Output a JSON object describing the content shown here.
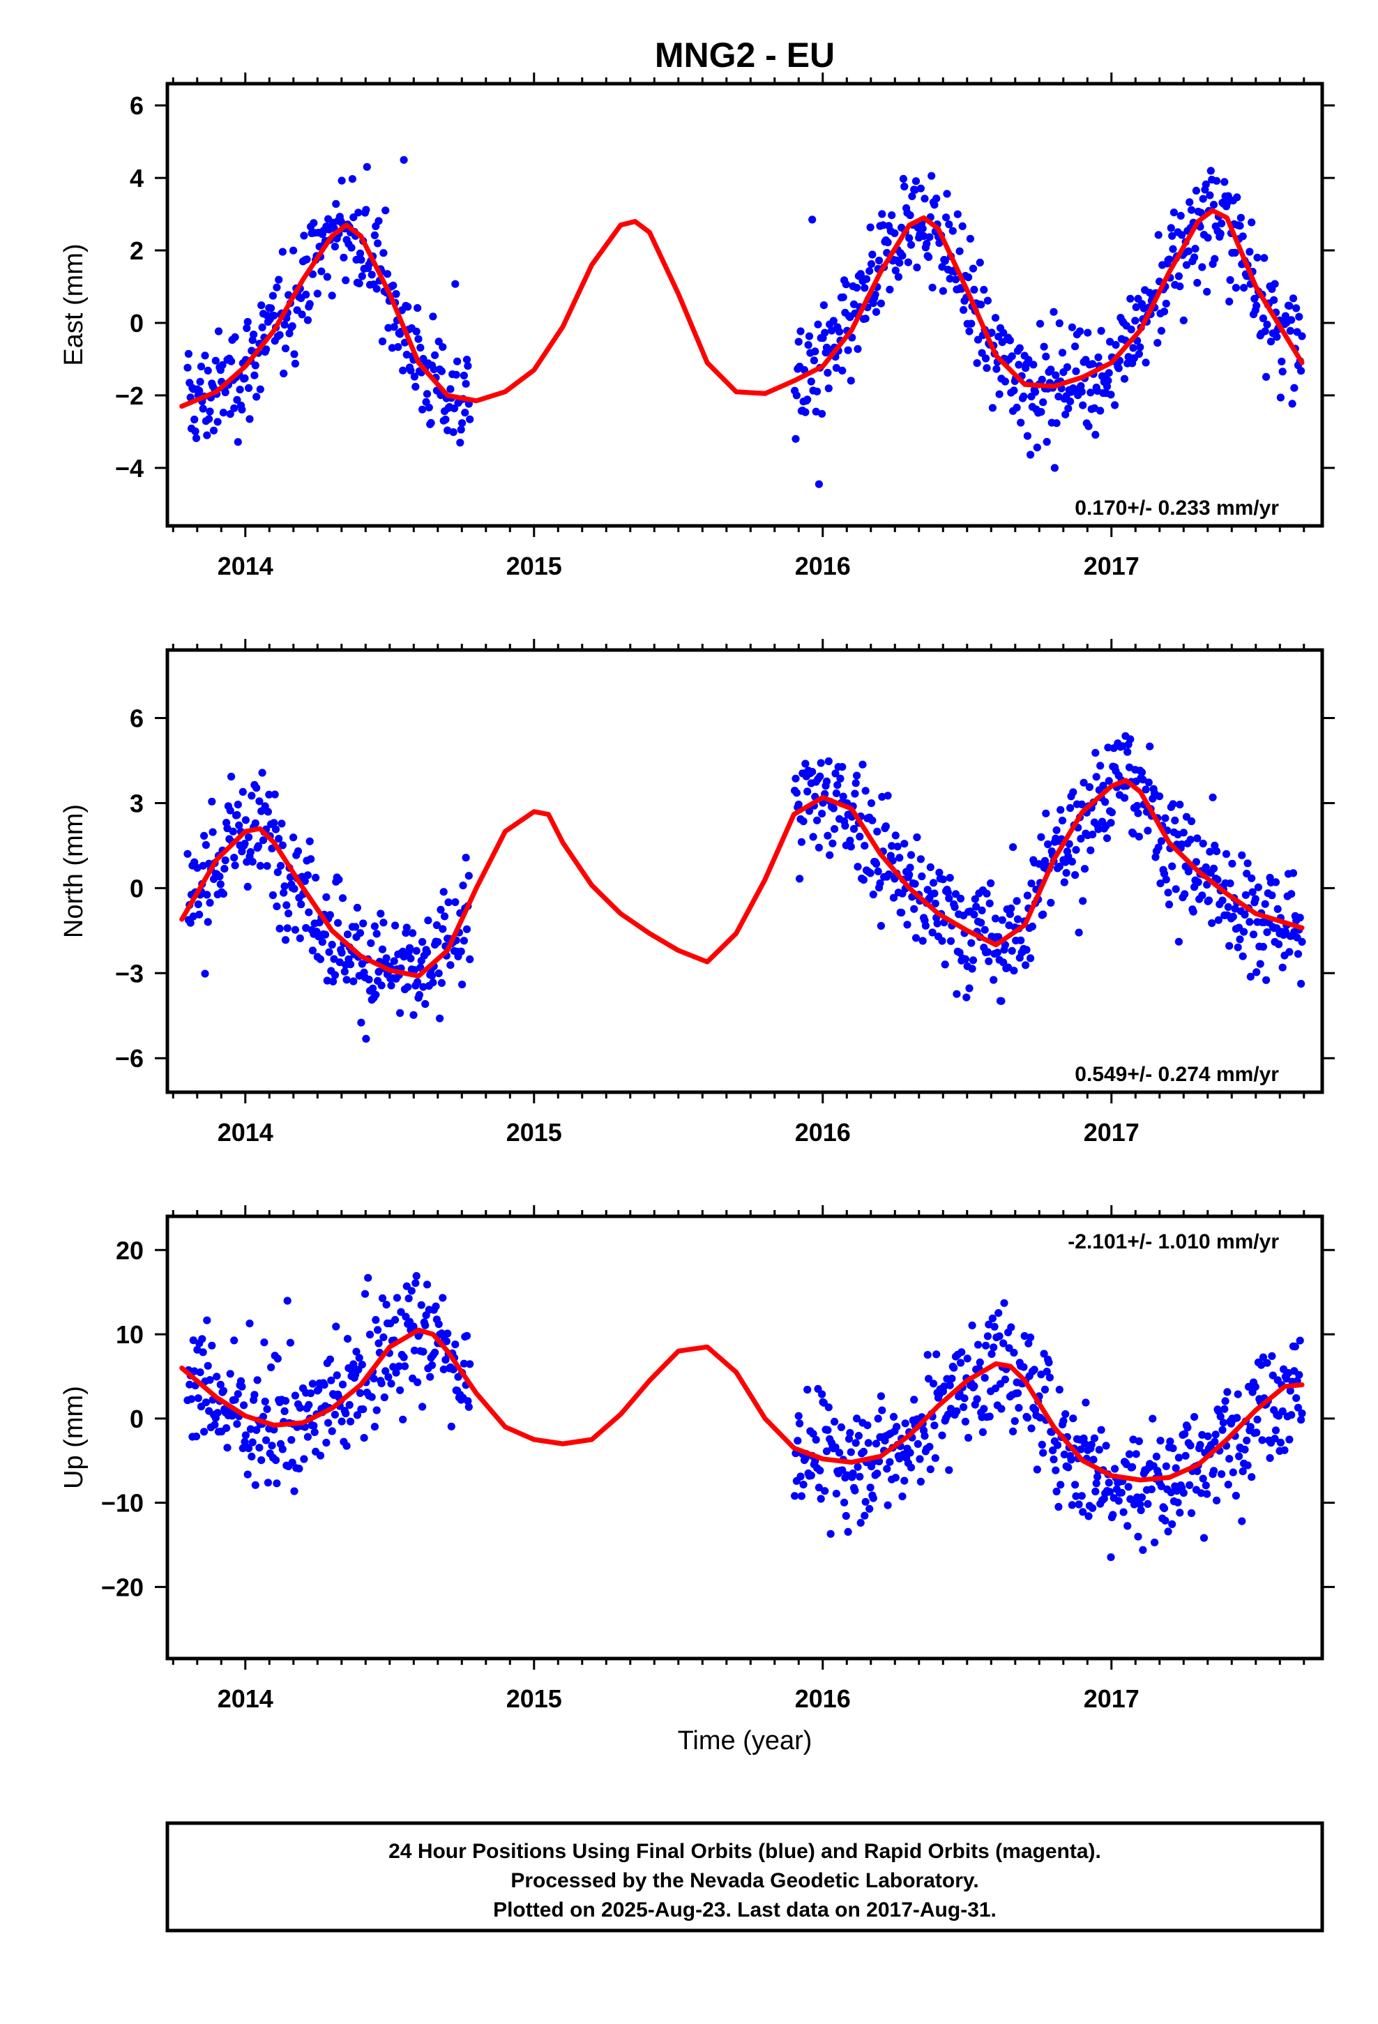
{
  "colors": {
    "points": "#0000ff",
    "fit": "#ff0000",
    "frame": "#000000"
  },
  "chart_data": [
    {
      "type": "scatter",
      "title": "MNG2 - EU",
      "ylabel": "East (mm)",
      "xlabel": "",
      "xlim": [
        2013.73,
        2017.73
      ],
      "ylim": [
        -5.6,
        6.6
      ],
      "yticks": [
        -4,
        -2,
        0,
        2,
        4,
        6
      ],
      "ytick_labels": [
        "−4",
        "−2",
        "0",
        "2",
        "4",
        "6"
      ],
      "xticks": [
        2014,
        2015,
        2016,
        2017
      ],
      "xtick_labels": [
        "2014",
        "2015",
        "2016",
        "2017"
      ],
      "rate": "0.170+/- 0.233 mm/yr",
      "rate_position": "bottom-right",
      "grid": false,
      "series": [
        {
          "role": "data",
          "x_range": [
            2013.8,
            2017.66
          ],
          "gaps": [
            [
              2014.78,
              2015.9
            ]
          ],
          "samples": 1150
        },
        {
          "role": "fit",
          "x": [
            2013.78,
            2013.9,
            2014.0,
            2014.1,
            2014.2,
            2014.3,
            2014.35,
            2014.4,
            2014.5,
            2014.6,
            2014.7,
            2014.8,
            2014.9,
            2015.0,
            2015.1,
            2015.2,
            2015.3,
            2015.35,
            2015.4,
            2015.5,
            2015.6,
            2015.7,
            2015.8,
            2015.9,
            2016.0,
            2016.1,
            2016.2,
            2016.3,
            2016.35,
            2016.4,
            2016.5,
            2016.6,
            2016.7,
            2016.8,
            2016.9,
            2017.0,
            2017.1,
            2017.2,
            2017.3,
            2017.35,
            2017.4,
            2017.5,
            2017.66
          ],
          "y": [
            -2.3,
            -1.9,
            -1.2,
            -0.2,
            1.2,
            2.4,
            2.7,
            2.4,
            0.8,
            -1.1,
            -2.0,
            -2.15,
            -1.9,
            -1.3,
            -0.1,
            1.6,
            2.7,
            2.8,
            2.5,
            0.8,
            -1.1,
            -1.9,
            -1.95,
            -1.6,
            -1.2,
            -0.2,
            1.4,
            2.7,
            2.9,
            2.6,
            0.9,
            -0.9,
            -1.7,
            -1.75,
            -1.5,
            -1.1,
            -0.2,
            1.4,
            2.8,
            3.1,
            2.9,
            1.0,
            -1.1
          ]
        }
      ]
    },
    {
      "type": "scatter",
      "title": "",
      "ylabel": "North (mm)",
      "xlabel": "",
      "xlim": [
        2013.73,
        2017.73
      ],
      "ylim": [
        -7.2,
        8.4
      ],
      "yticks": [
        -6,
        -3,
        0,
        3,
        6
      ],
      "ytick_labels": [
        "−6",
        "−3",
        "0",
        "3",
        "6"
      ],
      "xticks": [
        2014,
        2015,
        2016,
        2017
      ],
      "xtick_labels": [
        "2014",
        "2015",
        "2016",
        "2017"
      ],
      "rate": "0.549+/- 0.274 mm/yr",
      "rate_position": "bottom-right",
      "grid": false,
      "series": [
        {
          "role": "data",
          "x_range": [
            2013.8,
            2017.66
          ],
          "gaps": [
            [
              2014.78,
              2015.9
            ]
          ],
          "samples": 1150
        },
        {
          "role": "fit",
          "x": [
            2013.78,
            2013.9,
            2014.0,
            2014.05,
            2014.1,
            2014.2,
            2014.3,
            2014.4,
            2014.5,
            2014.6,
            2014.7,
            2014.8,
            2014.9,
            2015.0,
            2015.05,
            2015.1,
            2015.2,
            2015.3,
            2015.4,
            2015.5,
            2015.6,
            2015.7,
            2015.8,
            2015.9,
            2016.0,
            2016.1,
            2016.2,
            2016.3,
            2016.4,
            2016.5,
            2016.6,
            2016.7,
            2016.8,
            2016.9,
            2017.0,
            2017.05,
            2017.1,
            2017.2,
            2017.3,
            2017.4,
            2017.5,
            2017.66
          ],
          "y": [
            -1.1,
            1.0,
            2.0,
            2.1,
            1.6,
            0.0,
            -1.5,
            -2.4,
            -2.9,
            -3.1,
            -2.2,
            0.0,
            2.0,
            2.7,
            2.6,
            1.6,
            0.1,
            -0.9,
            -1.6,
            -2.2,
            -2.6,
            -1.6,
            0.3,
            2.6,
            3.2,
            2.8,
            1.2,
            0.0,
            -0.9,
            -1.5,
            -2.0,
            -1.3,
            1.0,
            2.7,
            3.6,
            3.8,
            3.4,
            1.6,
            0.6,
            -0.2,
            -0.9,
            -1.4
          ]
        }
      ]
    },
    {
      "type": "scatter",
      "title": "",
      "ylabel": "Up (mm)",
      "xlabel": "Time (year)",
      "xlim": [
        2013.73,
        2017.73
      ],
      "ylim": [
        -28.5,
        24.0
      ],
      "yticks": [
        -20,
        -10,
        0,
        10,
        20
      ],
      "ytick_labels": [
        "−20",
        "−10",
        "0",
        "10",
        "20"
      ],
      "xticks": [
        2014,
        2015,
        2016,
        2017
      ],
      "xtick_labels": [
        "2014",
        "2015",
        "2016",
        "2017"
      ],
      "rate": "-2.101+/- 1.010 mm/yr",
      "rate_position": "top-right",
      "grid": false,
      "series": [
        {
          "role": "data",
          "x_range": [
            2013.8,
            2017.66
          ],
          "gaps": [
            [
              2014.78,
              2015.9
            ]
          ],
          "samples": 1150
        },
        {
          "role": "fit",
          "x": [
            2013.78,
            2013.9,
            2014.0,
            2014.1,
            2014.2,
            2014.3,
            2014.4,
            2014.5,
            2014.6,
            2014.65,
            2014.7,
            2014.8,
            2014.9,
            2015.0,
            2015.1,
            2015.2,
            2015.3,
            2015.4,
            2015.5,
            2015.6,
            2015.7,
            2015.8,
            2015.9,
            2016.0,
            2016.1,
            2016.2,
            2016.3,
            2016.4,
            2016.5,
            2016.6,
            2016.65,
            2016.7,
            2016.8,
            2016.9,
            2017.0,
            2017.1,
            2017.2,
            2017.3,
            2017.4,
            2017.5,
            2017.6,
            2017.66
          ],
          "y": [
            6.0,
            2.5,
            0.3,
            -0.8,
            -0.5,
            1.2,
            4.0,
            8.5,
            10.5,
            10.0,
            8.0,
            3.0,
            -1.0,
            -2.5,
            -3.0,
            -2.5,
            0.5,
            4.5,
            8.0,
            8.5,
            5.5,
            0.0,
            -3.5,
            -4.8,
            -5.2,
            -4.5,
            -2.0,
            1.5,
            4.5,
            6.5,
            6.2,
            4.5,
            -1.0,
            -5.0,
            -6.8,
            -7.3,
            -7.0,
            -5.5,
            -2.5,
            1.0,
            3.8,
            4.0
          ]
        }
      ]
    }
  ],
  "caption": {
    "line1": "24 Hour Positions Using Final Orbits (blue) and Rapid Orbits (magenta).",
    "line2": "Processed by the Nevada Geodetic Laboratory.",
    "line3": "Plotted on 2025-Aug-23. Last data on 2017-Aug-31."
  }
}
